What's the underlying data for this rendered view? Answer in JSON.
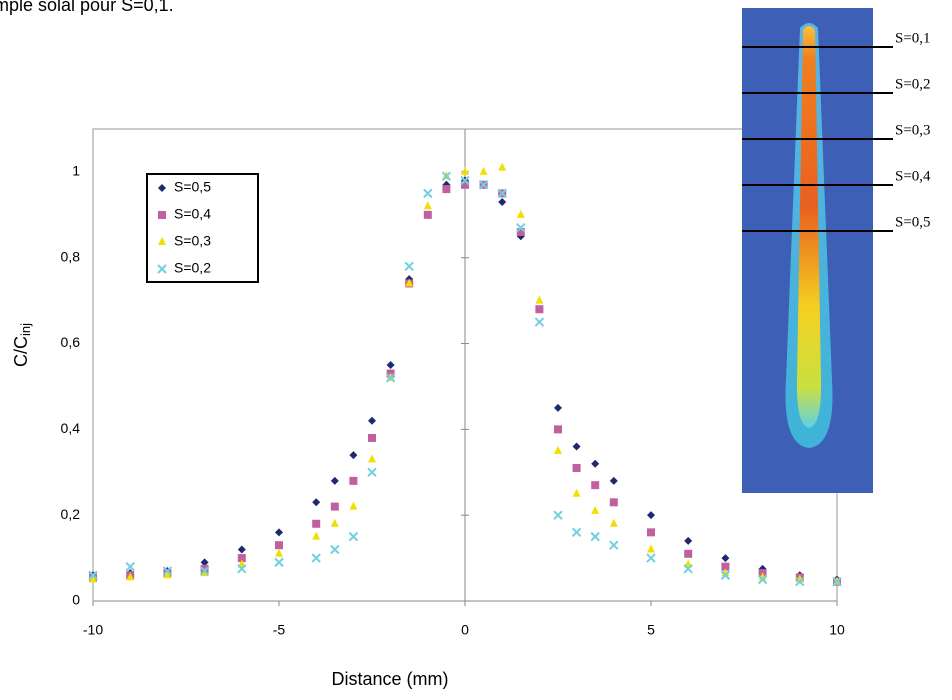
{
  "caption": "mple solal pour S=0,1.",
  "chart_data": {
    "type": "scatter",
    "x_label": "Distance (mm)",
    "y_label": "C/C",
    "y_label_sub": "inj",
    "xlim": [
      -10,
      10
    ],
    "xticks": [
      -10,
      -5,
      0,
      5,
      10
    ],
    "ylim": [
      0,
      1.1
    ],
    "yticks": [
      0,
      {
        "value": 0.2,
        "label": "0,2"
      },
      {
        "value": 0.4,
        "label": "0,4"
      },
      {
        "value": 0.6,
        "label": "0,6"
      },
      {
        "value": 0.8,
        "label": "0,8"
      },
      1
    ],
    "x": [
      -10,
      -9,
      -8,
      -7,
      -6,
      -5,
      -4,
      -3.5,
      -3,
      -2.5,
      -2,
      -1.5,
      -1,
      -0.5,
      0,
      0.5,
      1,
      1.5,
      2,
      2.5,
      3,
      3.5,
      4,
      5,
      6,
      7,
      8,
      9,
      10
    ],
    "series": [
      {
        "name": "S=0,5",
        "color": "#1f2a6e",
        "marker": "diamond",
        "values": [
          0.06,
          0.065,
          0.07,
          0.09,
          0.12,
          0.16,
          0.23,
          0.28,
          0.34,
          0.42,
          0.55,
          0.75,
          0.9,
          0.97,
          0.98,
          0.97,
          0.93,
          0.85,
          0.68,
          0.45,
          0.36,
          0.32,
          0.28,
          0.2,
          0.14,
          0.1,
          0.075,
          0.06,
          0.05
        ]
      },
      {
        "name": "S=0,4",
        "color": "#c060a0",
        "marker": "square",
        "values": [
          0.055,
          0.06,
          0.065,
          0.075,
          0.1,
          0.13,
          0.18,
          0.22,
          0.28,
          0.38,
          0.53,
          0.74,
          0.9,
          0.96,
          0.97,
          0.97,
          0.95,
          0.86,
          0.68,
          0.4,
          0.31,
          0.27,
          0.23,
          0.16,
          0.11,
          0.08,
          0.065,
          0.055,
          0.045
        ]
      },
      {
        "name": "S=0,3",
        "color": "#f0e000",
        "marker": "triangle",
        "values": [
          0.05,
          0.055,
          0.06,
          0.065,
          0.085,
          0.11,
          0.15,
          0.18,
          0.22,
          0.33,
          0.52,
          0.74,
          0.92,
          0.99,
          1.0,
          1.0,
          1.01,
          0.9,
          0.7,
          0.35,
          0.25,
          0.21,
          0.18,
          0.12,
          0.085,
          0.065,
          0.055,
          0.05,
          0.045
        ]
      },
      {
        "name": "S=0,2",
        "color": "#70d0e0",
        "marker": "cross",
        "values": [
          0.06,
          0.08,
          0.07,
          0.07,
          0.075,
          0.09,
          0.1,
          0.12,
          0.15,
          0.3,
          0.52,
          0.78,
          0.95,
          0.99,
          0.98,
          0.97,
          0.95,
          0.87,
          0.65,
          0.2,
          0.16,
          0.15,
          0.13,
          0.1,
          0.075,
          0.06,
          0.05,
          0.045,
          0.045
        ]
      }
    ]
  },
  "inset": {
    "labels": [
      "S=0,1",
      "S=0,2",
      "S=0,3",
      "S=0,4",
      "S=0,5"
    ]
  }
}
